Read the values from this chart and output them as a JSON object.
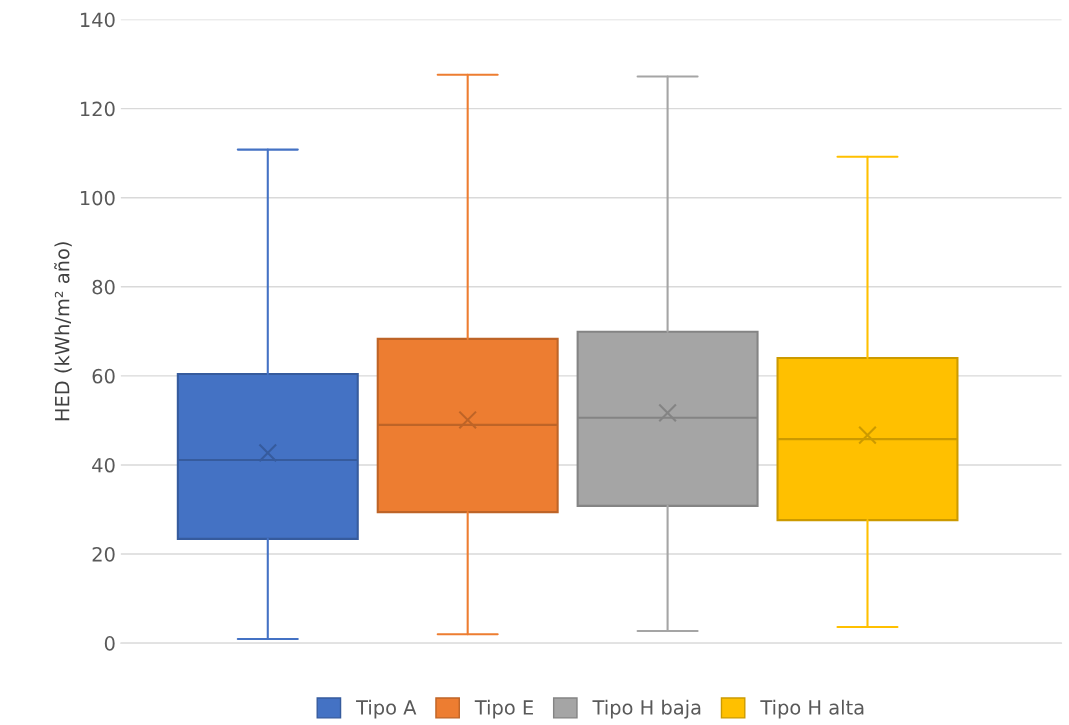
{
  "chart_data": {
    "type": "box",
    "ylabel": "HED (kWh/m² año)",
    "categories": [
      null
    ],
    "ylim": [
      0,
      140
    ],
    "yticks": [
      0,
      20,
      40,
      60,
      80,
      100,
      120,
      140
    ],
    "grid": "y",
    "legend": "bottom",
    "tick_labels": "y",
    "series": [
      {
        "name": "Tipo A",
        "color": "#4472c4",
        "boxes": [
          {
            "low": 0.9,
            "q1": 23.4,
            "median": 41.1,
            "q3": 60.4,
            "high": 110.8,
            "mean": 42.7
          }
        ]
      },
      {
        "name": "Tipo E",
        "color": "#ed7d31",
        "boxes": [
          {
            "low": 2.0,
            "q1": 29.4,
            "median": 49.0,
            "q3": 68.3,
            "high": 127.6,
            "mean": 50.1
          }
        ]
      },
      {
        "name": "Tipo H baja",
        "color": "#a5a5a5",
        "boxes": [
          {
            "low": 2.7,
            "q1": 30.8,
            "median": 50.6,
            "q3": 69.9,
            "high": 127.2,
            "mean": 51.7
          }
        ]
      },
      {
        "name": "Tipo H alta",
        "color": "#ffc000",
        "boxes": [
          {
            "low": 3.6,
            "q1": 27.6,
            "median": 45.8,
            "q3": 64.0,
            "high": 109.2,
            "mean": 46.7
          }
        ]
      }
    ]
  }
}
